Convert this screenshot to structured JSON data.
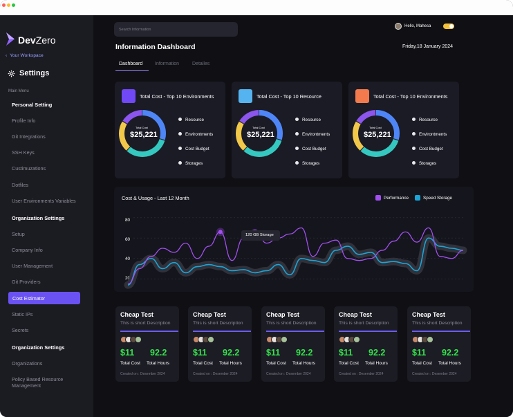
{
  "brand": {
    "name_bold": "Dev",
    "name_light": "Zero",
    "back_label": "Your Workspace",
    "settings_title": "Settings"
  },
  "sidebar": {
    "main_menu_label": "Main Menu",
    "personal_heading": "Personal Setting",
    "personal_items": [
      "Profile Info",
      "Git Integrations",
      "SSH Keys",
      "Custimuzations",
      "Dotfiles",
      "User Environments Variables"
    ],
    "org_heading": "Organization Settings",
    "org_items": [
      "Setup",
      "Company Info",
      "User Management",
      "Git Providers"
    ],
    "active_item": "Cost Estimator",
    "org_items2": [
      "Static IPs",
      "Secrets"
    ],
    "org_heading2": "Organization Settings",
    "org_items3": [
      "Organizations",
      "Policy Based Resource Management"
    ]
  },
  "header": {
    "search_placeholder": "Search Information",
    "greeting": "Hello, Mahesa",
    "title": "Information Dashboard",
    "date": "Friday,18 January 2024",
    "tabs": [
      "Dashboard",
      "Information",
      "Detailes"
    ],
    "active_tab": 0
  },
  "cost_cards": [
    {
      "title": "Total Cost - Top 10 Environments",
      "color": "#7048f5",
      "label": "Total Cost",
      "value": "$25,221",
      "legend": [
        "Resource",
        "Environtments",
        "Cost Budget",
        "Storages"
      ]
    },
    {
      "title": "Total Cost - Top 10 Resource",
      "color": "#55b4ef",
      "label": "Total Cost",
      "value": "$25,221",
      "legend": [
        "Resource",
        "Environtments",
        "Cost Budget",
        "Storages"
      ]
    },
    {
      "title": "Total Cost - Top 10 Environments",
      "color": "#f27a4c",
      "label": "Total Cost",
      "value": "$25,221",
      "legend": [
        "Resource",
        "Environtments",
        "Cost Budget",
        "Storages"
      ]
    }
  ],
  "donut_segments": [
    {
      "name": "Blue",
      "fraction": 0.3,
      "color": "#4f86f7"
    },
    {
      "name": "Teal",
      "fraction": 0.32,
      "color": "#34c8c0"
    },
    {
      "name": "Yellow",
      "fraction": 0.22,
      "color": "#f2c84a"
    },
    {
      "name": "Purple",
      "fraction": 0.16,
      "color": "#8b55ee"
    }
  ],
  "chart_data": {
    "type": "line",
    "title": "Cost & Usage - Last 12 Month",
    "ylim": [
      10,
      90
    ],
    "yticks": [
      20,
      40,
      60,
      80
    ],
    "grid": true,
    "legend_position": "top-right",
    "tooltip": "120 GB Storage",
    "series": [
      {
        "name": "Performance",
        "color": "#a24ff0",
        "values": [
          15,
          30,
          42,
          50,
          46,
          55,
          40,
          52,
          66,
          38,
          60,
          68,
          55,
          60,
          64,
          70,
          42,
          55,
          58,
          40,
          38,
          40,
          48,
          57,
          66,
          56,
          70,
          42,
          40,
          48
        ]
      },
      {
        "name": "Speed Storage",
        "color": "#1aa5d6",
        "values": [
          14,
          34,
          40,
          30,
          36,
          26,
          32,
          34,
          32,
          28,
          29,
          26,
          28,
          34,
          24,
          40,
          38,
          36,
          48,
          52,
          44,
          46,
          36,
          37,
          35,
          28,
          60,
          52,
          50,
          48
        ]
      }
    ]
  },
  "product_cards": [
    {
      "title": "Cheap Test",
      "desc": "This is short Description",
      "cost": "$11",
      "hours": "92.2",
      "cost_label": "Total Cost",
      "hours_label": "Total Hours",
      "created": "Created on : Desember 2024"
    },
    {
      "title": "Cheap Test",
      "desc": "This is short Description",
      "cost": "$11",
      "hours": "92.2",
      "cost_label": "Total Cost",
      "hours_label": "Total Hours",
      "created": "Created on : Desember 2024"
    },
    {
      "title": "Cheap Test",
      "desc": "This is short Description",
      "cost": "$11",
      "hours": "92.2",
      "cost_label": "Total Cost",
      "hours_label": "Total Hours",
      "created": "Created on : Desember 2024"
    },
    {
      "title": "Cheap Test",
      "desc": "This is short Description",
      "cost": "$11",
      "hours": "92.2",
      "cost_label": "Total Cost",
      "hours_label": "Total Hours",
      "created": "Created on : Desember 2024"
    },
    {
      "title": "Cheap Test",
      "desc": "This is short Description",
      "cost": "$11",
      "hours": "92.2",
      "cost_label": "Total Cost",
      "hours_label": "Total Hours",
      "created": "Created on : Desember 2024"
    }
  ]
}
